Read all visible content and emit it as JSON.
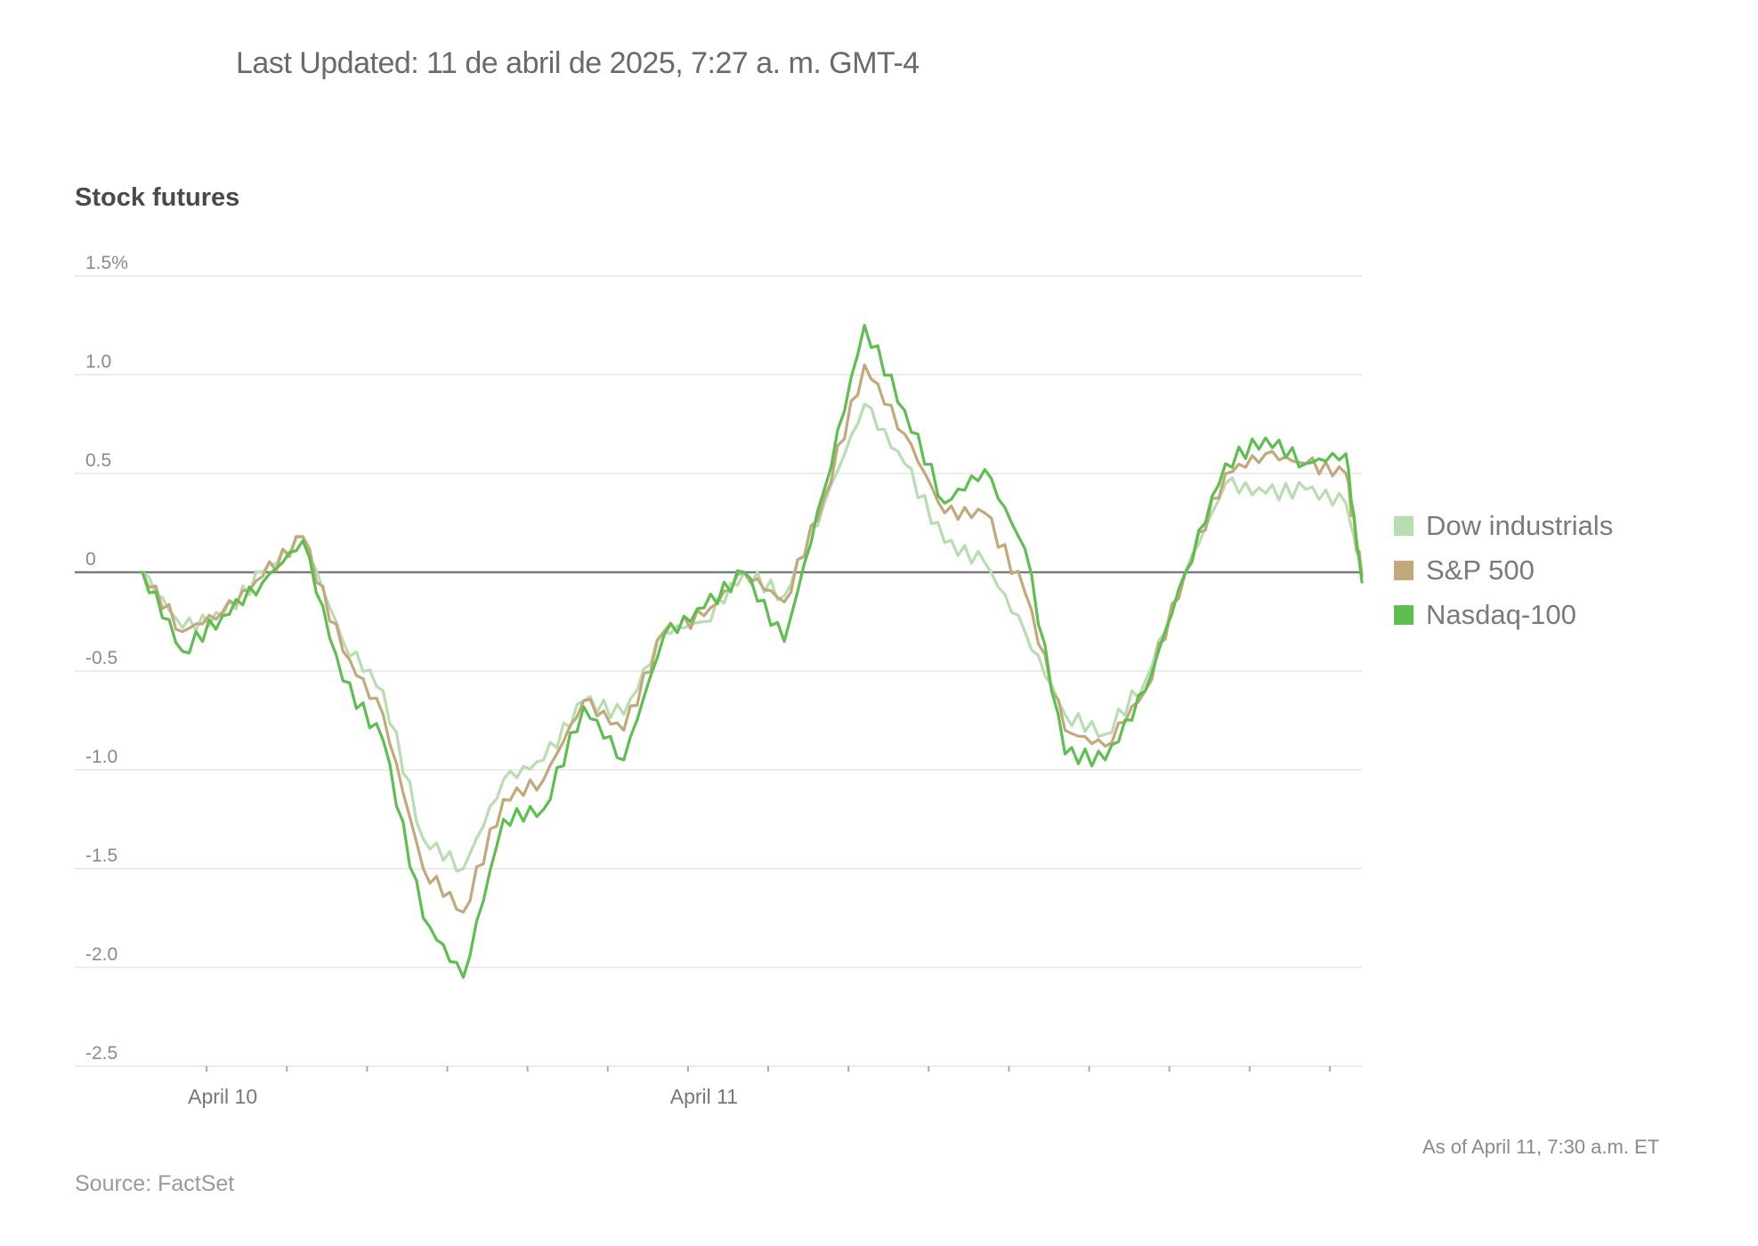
{
  "header": {
    "last_updated": "Last Updated: 11 de abril de 2025, 7:27 a. m. GMT-4"
  },
  "chart_data": {
    "type": "line",
    "title": "Stock futures",
    "ylim": [
      -2.5,
      1.5
    ],
    "y_ticks": [
      1.5,
      1.0,
      0.5,
      0,
      -0.5,
      -1.0,
      -1.5,
      -2.0,
      -2.5
    ],
    "y_tick_labels": [
      "1.5%",
      "1.0",
      "0.5",
      "0",
      "-0.5",
      "-1.0",
      "-1.5",
      "-2.0",
      "-2.5"
    ],
    "x_tick_labels": [
      "April 10",
      "April 11"
    ],
    "x_tick_label_positions": [
      1,
      7
    ],
    "xlim": [
      0,
      15.2
    ],
    "x": [
      0,
      0.5,
      1,
      1.5,
      2,
      2.5,
      3,
      3.5,
      4,
      4.5,
      5,
      5.5,
      6,
      6.5,
      7,
      7.5,
      8,
      8.5,
      9,
      9.5,
      10,
      10.5,
      11,
      11.5,
      12,
      12.5,
      13,
      13.5,
      14,
      14.5,
      15,
      15.2
    ],
    "series": [
      {
        "name": "Dow industrials",
        "color": "#b8ddb0",
        "values": [
          0.0,
          -0.28,
          -0.22,
          0.0,
          0.18,
          -0.35,
          -0.6,
          -1.35,
          -1.5,
          -1.05,
          -0.95,
          -0.65,
          -0.72,
          -0.3,
          -0.25,
          0.0,
          -0.12,
          0.35,
          0.85,
          0.55,
          0.15,
          0.05,
          -0.3,
          -0.72,
          -0.82,
          -0.55,
          0.0,
          0.45,
          0.4,
          0.42,
          0.35,
          0.0
        ]
      },
      {
        "name": "S&P 500",
        "color": "#c2a87a",
        "values": [
          0.0,
          -0.3,
          -0.2,
          -0.02,
          0.18,
          -0.4,
          -0.72,
          -1.5,
          -1.72,
          -1.15,
          -1.05,
          -0.65,
          -0.8,
          -0.3,
          -0.22,
          0.0,
          -0.15,
          0.38,
          1.05,
          0.7,
          0.3,
          0.3,
          -0.1,
          -0.8,
          -0.88,
          -0.6,
          0.0,
          0.5,
          0.6,
          0.55,
          0.5,
          -0.02
        ]
      },
      {
        "name": "Nasdaq-100",
        "color": "#5cbf4f",
        "values": [
          0.0,
          -0.4,
          -0.22,
          -0.05,
          0.16,
          -0.55,
          -0.85,
          -1.75,
          -2.05,
          -1.25,
          -1.2,
          -0.68,
          -0.95,
          -0.32,
          -0.18,
          0.0,
          -0.35,
          0.42,
          1.25,
          0.82,
          0.35,
          0.52,
          0.12,
          -0.92,
          -0.95,
          -0.6,
          0.0,
          0.55,
          0.68,
          0.55,
          0.6,
          -0.05
        ]
      }
    ],
    "annotations": {
      "as_of": "As of April 11, 7:30 a.m. ET",
      "source": "Source: FactSet"
    },
    "grid": true,
    "legend_position": "right"
  }
}
